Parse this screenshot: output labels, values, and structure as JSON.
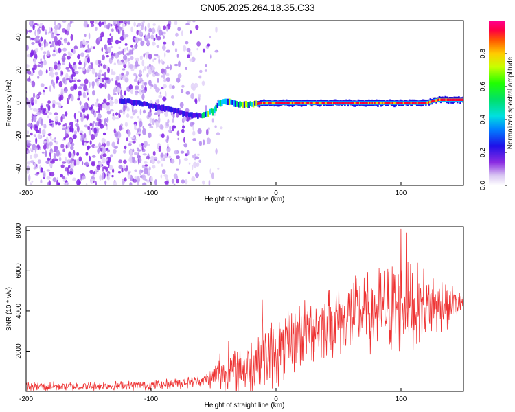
{
  "title": "GN05.2025.264.18.35.C33",
  "chart_data": [
    {
      "type": "heatmap",
      "xlabel": "Height of straight line (km)",
      "ylabel": "Frequency (Hz)",
      "xlim": [
        -200,
        150
      ],
      "ylim": [
        -50,
        50
      ],
      "xticks": [
        -200,
        -100,
        0,
        100
      ],
      "yticks": [
        -40,
        -20,
        0,
        20,
        40
      ],
      "signal_track": {
        "x": [
          -200,
          -120,
          -110,
          -100,
          -90,
          -80,
          -70,
          -60,
          -50,
          -45,
          -40,
          -30,
          -20,
          -10,
          0,
          20,
          40,
          60,
          80,
          100,
          120,
          130,
          150
        ],
        "y": [
          0,
          1,
          0,
          -2,
          -3,
          -5,
          -7,
          -8,
          -5,
          0,
          1,
          -1,
          -1,
          0,
          0,
          0,
          0,
          0,
          0,
          0,
          0,
          2,
          2
        ]
      },
      "noise_extent_x": [
        -200,
        -55
      ],
      "colorbar": {
        "label": "Normalized spectral amplitude",
        "ticks": [
          0.0,
          0.2,
          0.4,
          0.6,
          0.8
        ],
        "range": [
          0,
          1
        ]
      }
    },
    {
      "type": "line",
      "xlabel": "Height of straight line (km)",
      "ylabel": "SNR (10 * v/v)",
      "xlim": [
        -200,
        150
      ],
      "ylim": [
        0,
        8200
      ],
      "xticks": [
        -200,
        -100,
        0,
        100
      ],
      "yticks": [
        2000,
        4000,
        6000,
        8000
      ],
      "line_color": "#ee3333",
      "envelope": {
        "x": [
          -200,
          -150,
          -100,
          -80,
          -60,
          -50,
          -45,
          -40,
          -30,
          -20,
          -10,
          0,
          10,
          20,
          40,
          60,
          80,
          100,
          120,
          140,
          150
        ],
        "mean": [
          250,
          260,
          300,
          400,
          520,
          700,
          1000,
          900,
          1100,
          1300,
          1700,
          1900,
          2300,
          2900,
          3400,
          3700,
          4000,
          4200,
          4300,
          4350,
          4400
        ],
        "amp": [
          250,
          250,
          260,
          300,
          300,
          600,
          1200,
          900,
          1300,
          1700,
          1700,
          1800,
          1800,
          1800,
          1800,
          2000,
          2200,
          2400,
          2000,
          1200,
          600
        ]
      },
      "peaks": [
        {
          "x": -38,
          "y": 2500
        },
        {
          "x": -11,
          "y": 4550
        },
        {
          "x": 100,
          "y": 8100
        },
        {
          "x": 104,
          "y": 7900
        }
      ]
    }
  ]
}
